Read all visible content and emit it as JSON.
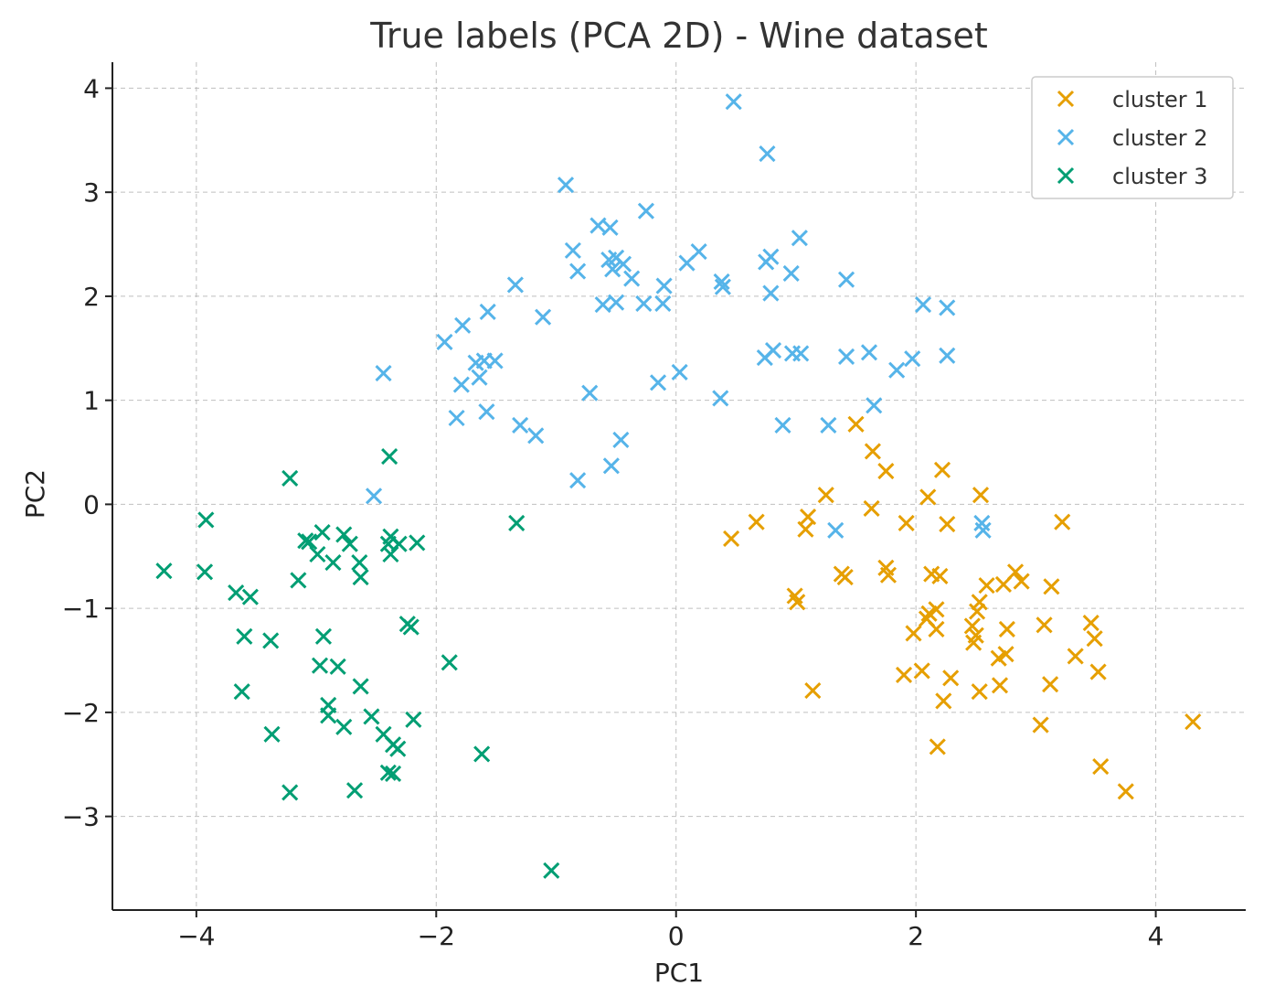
{
  "chart_data": {
    "type": "scatter",
    "title": "True labels (PCA 2D) - Wine dataset",
    "xlabel": "PC1",
    "ylabel": "PC2",
    "xlim": [
      -4.7,
      4.75
    ],
    "ylim": [
      -3.9,
      4.25
    ],
    "xticks": [
      -4,
      -2,
      0,
      2,
      4
    ],
    "yticks": [
      -3,
      -2,
      -1,
      0,
      1,
      2,
      3,
      4
    ],
    "xtick_labels": [
      "−4",
      "−2",
      "0",
      "2",
      "4"
    ],
    "ytick_labels": [
      "−3",
      "−2",
      "−1",
      "0",
      "1",
      "2",
      "3",
      "4"
    ],
    "grid": true,
    "marker": "x",
    "legend_position": "top-right",
    "series": [
      {
        "name": "cluster 1",
        "color": "#E69F00",
        "points": [
          [
            1.5,
            0.77
          ],
          [
            1.64,
            0.51
          ],
          [
            1.75,
            0.32
          ],
          [
            2.22,
            0.33
          ],
          [
            2.54,
            0.09
          ],
          [
            2.1,
            0.07
          ],
          [
            1.25,
            0.09
          ],
          [
            1.63,
            -0.04
          ],
          [
            0.46,
            -0.33
          ],
          [
            0.67,
            -0.17
          ],
          [
            1.1,
            -0.12
          ],
          [
            1.08,
            -0.24
          ],
          [
            1.92,
            -0.18
          ],
          [
            2.26,
            -0.19
          ],
          [
            3.22,
            -0.17
          ],
          [
            1.38,
            -0.67
          ],
          [
            1.41,
            -0.7
          ],
          [
            1.75,
            -0.61
          ],
          [
            1.77,
            -0.68
          ],
          [
            2.13,
            -0.67
          ],
          [
            2.2,
            -0.69
          ],
          [
            2.59,
            -0.78
          ],
          [
            2.73,
            -0.77
          ],
          [
            2.83,
            -0.65
          ],
          [
            2.88,
            -0.74
          ],
          [
            3.13,
            -0.79
          ],
          [
            0.99,
            -0.88
          ],
          [
            1.01,
            -0.94
          ],
          [
            2.11,
            -1.05
          ],
          [
            2.17,
            -1.01
          ],
          [
            2.09,
            -1.1
          ],
          [
            2.53,
            -0.94
          ],
          [
            2.51,
            -1.03
          ],
          [
            1.98,
            -1.24
          ],
          [
            2.17,
            -1.2
          ],
          [
            2.47,
            -1.17
          ],
          [
            2.5,
            -1.26
          ],
          [
            2.48,
            -1.33
          ],
          [
            2.76,
            -1.2
          ],
          [
            3.07,
            -1.16
          ],
          [
            3.46,
            -1.14
          ],
          [
            3.49,
            -1.29
          ],
          [
            3.33,
            -1.46
          ],
          [
            2.69,
            -1.48
          ],
          [
            2.75,
            -1.44
          ],
          [
            1.9,
            -1.64
          ],
          [
            2.05,
            -1.6
          ],
          [
            2.29,
            -1.67
          ],
          [
            2.7,
            -1.74
          ],
          [
            3.12,
            -1.73
          ],
          [
            3.52,
            -1.61
          ],
          [
            2.53,
            -1.8
          ],
          [
            2.23,
            -1.89
          ],
          [
            1.14,
            -1.79
          ],
          [
            3.04,
            -2.12
          ],
          [
            2.18,
            -2.33
          ],
          [
            4.31,
            -2.09
          ],
          [
            3.54,
            -2.52
          ],
          [
            3.75,
            -2.76
          ]
        ]
      },
      {
        "name": "cluster 2",
        "color": "#56B4E9",
        "points": [
          [
            0.48,
            3.87
          ],
          [
            0.76,
            3.37
          ],
          [
            -0.92,
            3.07
          ],
          [
            -0.25,
            2.82
          ],
          [
            -0.65,
            2.68
          ],
          [
            -0.55,
            2.66
          ],
          [
            -0.86,
            2.44
          ],
          [
            0.19,
            2.43
          ],
          [
            1.03,
            2.56
          ],
          [
            -0.56,
            2.35
          ],
          [
            -0.5,
            2.37
          ],
          [
            -0.53,
            2.26
          ],
          [
            -0.44,
            2.31
          ],
          [
            -0.37,
            2.17
          ],
          [
            -0.82,
            2.24
          ],
          [
            0.09,
            2.32
          ],
          [
            0.75,
            2.33
          ],
          [
            0.79,
            2.38
          ],
          [
            0.96,
            2.22
          ],
          [
            1.42,
            2.16
          ],
          [
            -1.34,
            2.11
          ],
          [
            -0.1,
            2.1
          ],
          [
            0.38,
            2.14
          ],
          [
            0.39,
            2.09
          ],
          [
            0.79,
            2.03
          ],
          [
            -1.57,
            1.85
          ],
          [
            -1.11,
            1.8
          ],
          [
            -1.78,
            1.72
          ],
          [
            -0.61,
            1.92
          ],
          [
            -0.5,
            1.94
          ],
          [
            -0.27,
            1.93
          ],
          [
            -0.11,
            1.93
          ],
          [
            2.06,
            1.92
          ],
          [
            2.26,
            1.89
          ],
          [
            -1.93,
            1.56
          ],
          [
            -1.6,
            1.38
          ],
          [
            -1.67,
            1.36
          ],
          [
            -1.51,
            1.38
          ],
          [
            -1.64,
            1.22
          ],
          [
            -1.79,
            1.15
          ],
          [
            0.74,
            1.41
          ],
          [
            0.81,
            1.48
          ],
          [
            0.97,
            1.45
          ],
          [
            1.04,
            1.45
          ],
          [
            1.42,
            1.42
          ],
          [
            1.61,
            1.46
          ],
          [
            1.84,
            1.29
          ],
          [
            1.97,
            1.4
          ],
          [
            2.26,
            1.43
          ],
          [
            -2.44,
            1.26
          ],
          [
            0.03,
            1.27
          ],
          [
            -0.15,
            1.17
          ],
          [
            -0.72,
            1.07
          ],
          [
            0.37,
            1.02
          ],
          [
            1.65,
            0.95
          ],
          [
            -1.58,
            0.89
          ],
          [
            -1.83,
            0.83
          ],
          [
            -1.3,
            0.76
          ],
          [
            -1.17,
            0.66
          ],
          [
            0.89,
            0.76
          ],
          [
            1.27,
            0.76
          ],
          [
            -0.46,
            0.62
          ],
          [
            -0.54,
            0.37
          ],
          [
            -0.82,
            0.23
          ],
          [
            -2.52,
            0.08
          ],
          [
            1.33,
            -0.25
          ],
          [
            2.55,
            -0.18
          ],
          [
            2.56,
            -0.25
          ]
        ]
      },
      {
        "name": "cluster 3",
        "color": "#009E73",
        "points": [
          [
            -2.39,
            0.46
          ],
          [
            -3.22,
            0.25
          ],
          [
            -3.92,
            -0.15
          ],
          [
            -1.33,
            -0.18
          ],
          [
            -4.27,
            -0.64
          ],
          [
            -3.93,
            -0.65
          ],
          [
            -3.09,
            -0.35
          ],
          [
            -3.06,
            -0.36
          ],
          [
            -2.95,
            -0.27
          ],
          [
            -2.77,
            -0.29
          ],
          [
            -2.72,
            -0.38
          ],
          [
            -2.99,
            -0.48
          ],
          [
            -2.86,
            -0.56
          ],
          [
            -2.64,
            -0.56
          ],
          [
            -2.38,
            -0.31
          ],
          [
            -2.4,
            -0.38
          ],
          [
            -2.31,
            -0.38
          ],
          [
            -2.16,
            -0.37
          ],
          [
            -2.38,
            -0.48
          ],
          [
            -2.63,
            -0.7
          ],
          [
            -3.15,
            -0.73
          ],
          [
            -3.67,
            -0.85
          ],
          [
            -3.55,
            -0.89
          ],
          [
            -3.6,
            -1.27
          ],
          [
            -3.38,
            -1.31
          ],
          [
            -2.94,
            -1.27
          ],
          [
            -2.24,
            -1.15
          ],
          [
            -2.21,
            -1.18
          ],
          [
            -1.89,
            -1.52
          ],
          [
            -2.97,
            -1.55
          ],
          [
            -2.82,
            -1.56
          ],
          [
            -2.63,
            -1.75
          ],
          [
            -3.62,
            -1.8
          ],
          [
            -2.9,
            -1.93
          ],
          [
            -2.9,
            -2.03
          ],
          [
            -2.77,
            -2.14
          ],
          [
            -2.54,
            -2.04
          ],
          [
            -2.44,
            -2.21
          ],
          [
            -2.36,
            -2.31
          ],
          [
            -2.32,
            -2.35
          ],
          [
            -2.19,
            -2.07
          ],
          [
            -1.62,
            -2.4
          ],
          [
            -3.37,
            -2.21
          ],
          [
            -2.4,
            -2.58
          ],
          [
            -2.36,
            -2.59
          ],
          [
            -3.22,
            -2.77
          ],
          [
            -2.68,
            -2.75
          ],
          [
            -1.04,
            -3.52
          ]
        ]
      }
    ]
  }
}
